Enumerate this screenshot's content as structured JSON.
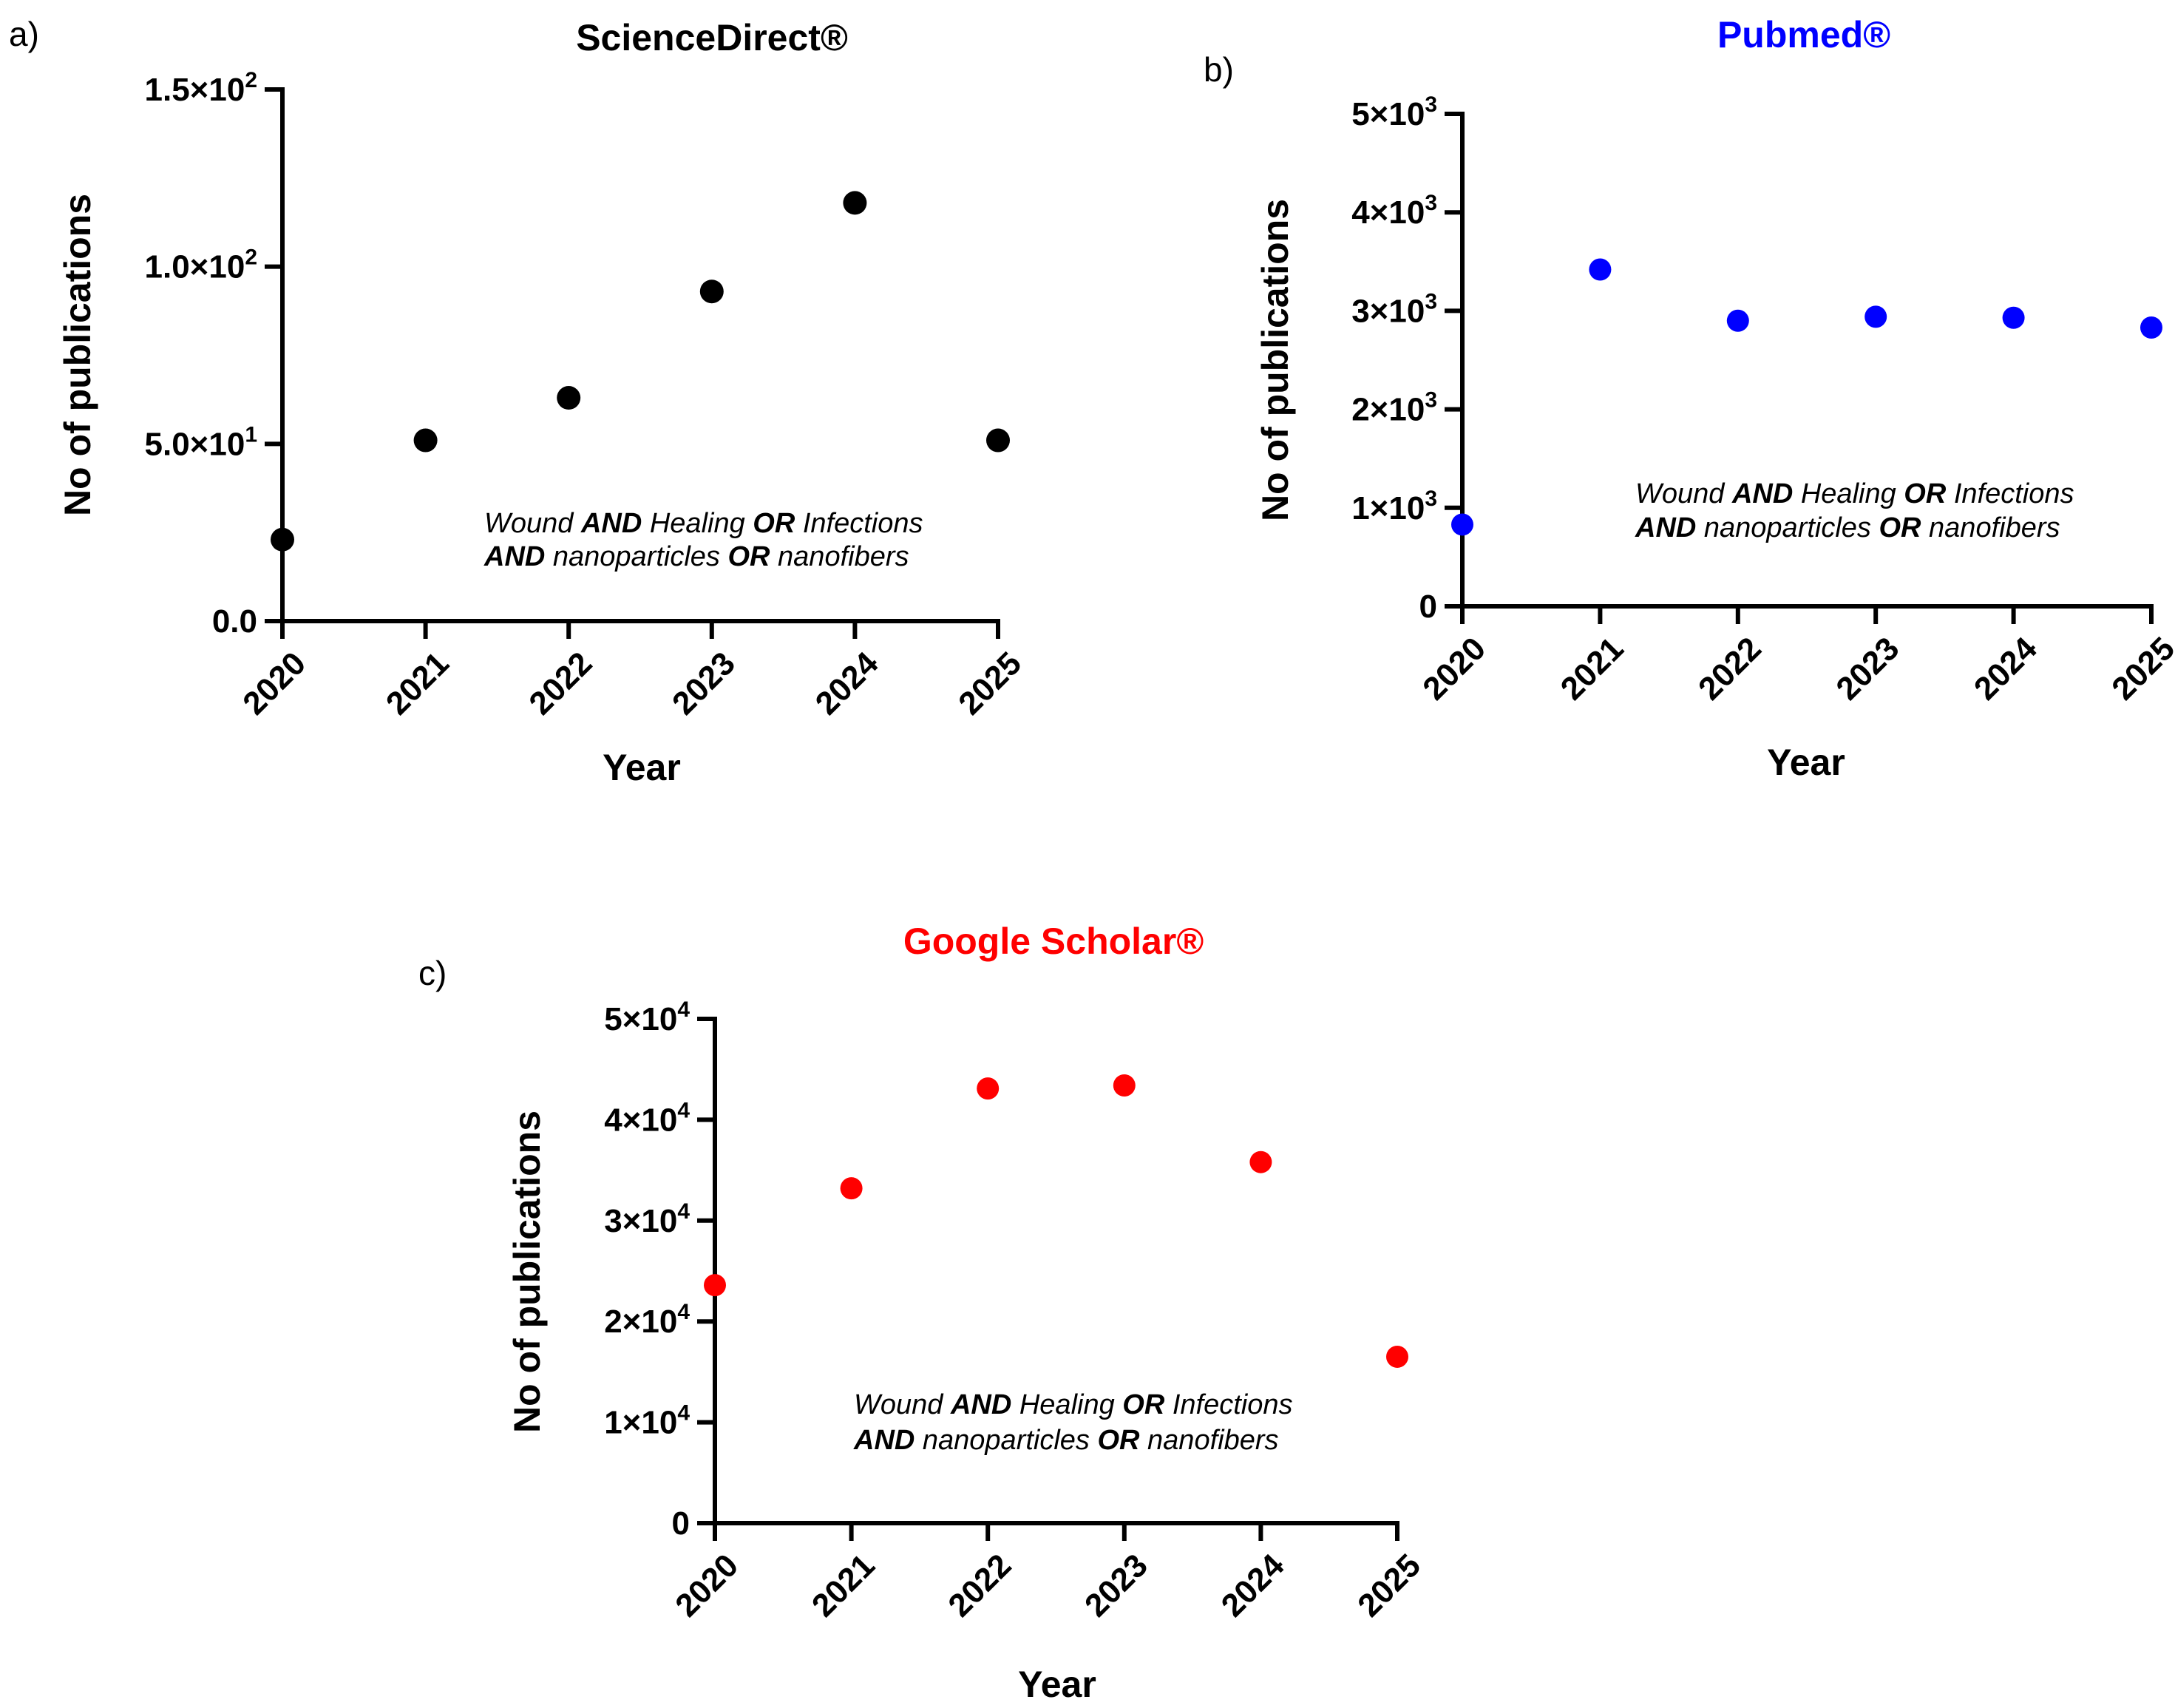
{
  "chart_data": [
    {
      "type": "scatter",
      "panel_label": "a)",
      "title": "ScienceDirect®",
      "title_color": "#000000",
      "marker_color": "#000000",
      "xlabel": "Year",
      "ylabel": "No of publications",
      "categories": [
        "2020",
        "2021",
        "2022",
        "2023",
        "2024",
        "2025"
      ],
      "values": [
        23,
        51,
        63,
        93,
        118,
        51
      ],
      "ylim": [
        0,
        150
      ],
      "yticks": [
        {
          "value": 0,
          "mantissa": "0.0",
          "exp": ""
        },
        {
          "value": 50,
          "mantissa": "5.0×10",
          "exp": "1"
        },
        {
          "value": 100,
          "mantissa": "1.0×10",
          "exp": "2"
        },
        {
          "value": 150,
          "mantissa": "1.5×10",
          "exp": "2"
        }
      ],
      "annotation": {
        "line1": [
          {
            "text": "Wound ",
            "bold": false
          },
          {
            "text": "AND",
            "bold": true
          },
          {
            "text": " Healing ",
            "bold": false
          },
          {
            "text": "OR",
            "bold": true
          },
          {
            "text": " Infections",
            "bold": false
          }
        ],
        "line2": [
          {
            "text": "AND",
            "bold": true
          },
          {
            "text": " nanoparticles ",
            "bold": false
          },
          {
            "text": "OR",
            "bold": true
          },
          {
            "text": " nanofibers",
            "bold": false
          }
        ]
      }
    },
    {
      "type": "scatter",
      "panel_label": "b)",
      "title": "Pubmed®",
      "title_color": "#0000ff",
      "marker_color": "#0000ff",
      "xlabel": "Year",
      "ylabel": "No of publications",
      "categories": [
        "2020",
        "2021",
        "2022",
        "2023",
        "2024",
        "2025"
      ],
      "values": [
        830,
        3420,
        2900,
        2940,
        2930,
        2830
      ],
      "ylim": [
        0,
        5000
      ],
      "yticks": [
        {
          "value": 0,
          "mantissa": "0",
          "exp": ""
        },
        {
          "value": 1000,
          "mantissa": "1×10",
          "exp": "3"
        },
        {
          "value": 2000,
          "mantissa": "2×10",
          "exp": "3"
        },
        {
          "value": 3000,
          "mantissa": "3×10",
          "exp": "3"
        },
        {
          "value": 4000,
          "mantissa": "4×10",
          "exp": "3"
        },
        {
          "value": 5000,
          "mantissa": "5×10",
          "exp": "3"
        }
      ],
      "annotation": {
        "line1": [
          {
            "text": "Wound ",
            "bold": false
          },
          {
            "text": "AND",
            "bold": true
          },
          {
            "text": " Healing ",
            "bold": false
          },
          {
            "text": "OR",
            "bold": true
          },
          {
            "text": " Infections",
            "bold": false
          }
        ],
        "line2": [
          {
            "text": "AND",
            "bold": true
          },
          {
            "text": " nanoparticles ",
            "bold": false
          },
          {
            "text": "OR",
            "bold": true
          },
          {
            "text": " nanofibers",
            "bold": false
          }
        ]
      }
    },
    {
      "type": "scatter",
      "panel_label": "c)",
      "title": "Google Scholar®",
      "title_color": "#ff0000",
      "marker_color": "#ff0000",
      "xlabel": "Year",
      "ylabel": "No of publications",
      "categories": [
        "2020",
        "2021",
        "2022",
        "2023",
        "2024",
        "2025"
      ],
      "values": [
        23600,
        33200,
        43100,
        43400,
        35800,
        16500
      ],
      "ylim": [
        0,
        50000
      ],
      "yticks": [
        {
          "value": 0,
          "mantissa": "0",
          "exp": ""
        },
        {
          "value": 10000,
          "mantissa": "1×10",
          "exp": "4"
        },
        {
          "value": 20000,
          "mantissa": "2×10",
          "exp": "4"
        },
        {
          "value": 30000,
          "mantissa": "3×10",
          "exp": "4"
        },
        {
          "value": 40000,
          "mantissa": "4×10",
          "exp": "4"
        },
        {
          "value": 50000,
          "mantissa": "5×10",
          "exp": "4"
        }
      ],
      "annotation": {
        "line1": [
          {
            "text": "Wound ",
            "bold": false
          },
          {
            "text": "AND",
            "bold": true
          },
          {
            "text": " Healing ",
            "bold": false
          },
          {
            "text": "OR",
            "bold": true
          },
          {
            "text": " Infections",
            "bold": false
          }
        ],
        "line2": [
          {
            "text": "AND",
            "bold": true
          },
          {
            "text": " nanoparticles ",
            "bold": false
          },
          {
            "text": "OR",
            "bold": true
          },
          {
            "text": " nanofibers",
            "bold": false
          }
        ]
      }
    }
  ]
}
